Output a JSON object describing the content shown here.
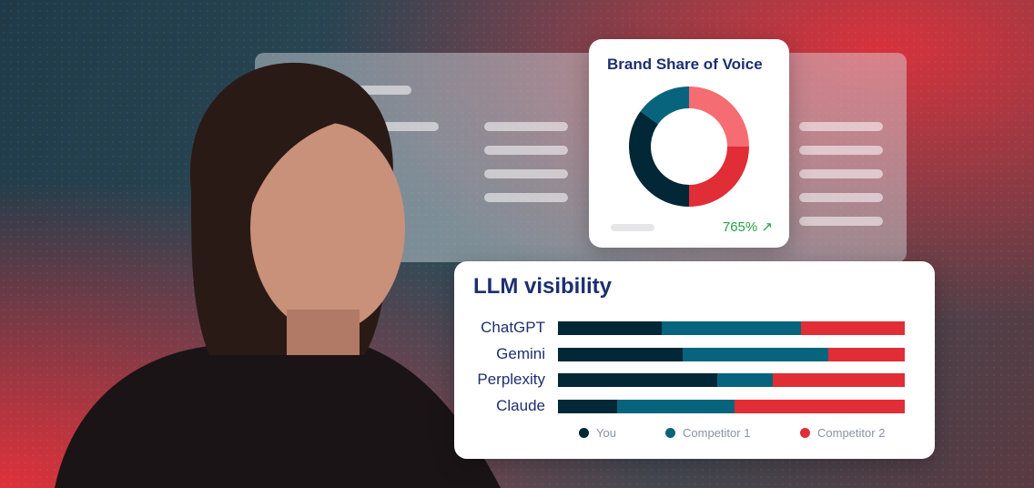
{
  "colors": {
    "you": "#022737",
    "competitor1": "#08647d",
    "competitor2": "#e02d36",
    "competitor2_light": "#f56c72",
    "title": "#1d2f6f",
    "positive": "#2aa043"
  },
  "share_of_voice": {
    "title": "Brand Share of Voice",
    "change": "765%",
    "change_icon": "arrow-up-right-icon"
  },
  "chart_data": [
    {
      "type": "pie",
      "title": "Brand Share of Voice",
      "style": "donut",
      "slices": [
        {
          "value": 25,
          "color": "#f56c72"
        },
        {
          "value": 25,
          "color": "#e02d36"
        },
        {
          "value": 35,
          "color": "#022737"
        },
        {
          "value": 15,
          "color": "#08647d"
        }
      ]
    },
    {
      "type": "bar",
      "title": "LLM visibility",
      "orientation": "horizontal",
      "stacked": true,
      "normalized": true,
      "categories": [
        "ChatGPT",
        "Gemini",
        "Perplexity",
        "Claude"
      ],
      "series": [
        {
          "name": "You",
          "values": [
            30,
            36,
            46,
            17
          ],
          "color": "#022737"
        },
        {
          "name": "Competitor 1",
          "values": [
            40,
            42,
            16,
            34
          ],
          "color": "#08647d"
        },
        {
          "name": "Competitor 2",
          "values": [
            30,
            22,
            38,
            49
          ],
          "color": "#e02d36"
        }
      ],
      "legend": "bottom"
    }
  ]
}
